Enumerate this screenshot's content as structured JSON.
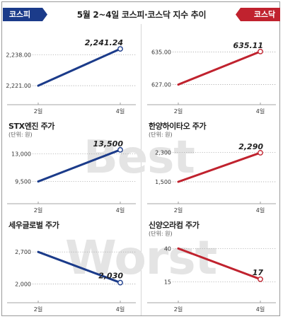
{
  "header": {
    "title": "5월 2~4일 코스피·코스닥 지수 추이",
    "left_tag": "코스피",
    "right_tag": "코스닥",
    "left_color": "#1b3b8a",
    "right_color": "#c0222e"
  },
  "watermark": {
    "top_word": "Best",
    "bottom_word": "Worst"
  },
  "chart_data": [
    {
      "type": "line",
      "title": "",
      "unit": "",
      "x": [
        "2일",
        "4일"
      ],
      "yticks": [
        "2,221.00",
        "2,238.00"
      ],
      "ylim": [
        2216,
        2244
      ],
      "values": [
        2221.0,
        2241.24
      ],
      "end_label": "2,241.24",
      "color": "#1b3b8a",
      "trend": "up"
    },
    {
      "type": "line",
      "title": "",
      "unit": "",
      "x": [
        "2일",
        "4일"
      ],
      "yticks": [
        "627.00",
        "635.00"
      ],
      "ylim": [
        624.5,
        637
      ],
      "values": [
        627.0,
        635.11
      ],
      "end_label": "635.11",
      "color": "#c0222e",
      "trend": "up"
    },
    {
      "type": "line",
      "title": "STX엔진 주가",
      "unit": "(단위: 원)",
      "x": [
        "2일",
        "4일"
      ],
      "yticks": [
        "9,500",
        "13,000"
      ],
      "ylim": [
        8300,
        14200
      ],
      "values": [
        9500,
        13500
      ],
      "end_label": "13,500",
      "color": "#1b3b8a",
      "trend": "up"
    },
    {
      "type": "line",
      "title": "한양하이타오 주가",
      "unit": "(단위: 원)",
      "x": [
        "2일",
        "4일"
      ],
      "yticks": [
        "1,500",
        "2,300"
      ],
      "ylim": [
        1250,
        2520
      ],
      "values": [
        1500,
        2290
      ],
      "end_label": "2,290",
      "color": "#c0222e",
      "trend": "up"
    },
    {
      "type": "line",
      "title": "세우글로벌 주가",
      "unit": "",
      "x": [
        "2일",
        "4일"
      ],
      "yticks": [
        "2,000",
        "2,700"
      ],
      "ylim": [
        1900,
        2950
      ],
      "values": [
        2700,
        2030
      ],
      "end_label": "2,030",
      "color": "#1b3b8a",
      "trend": "down"
    },
    {
      "type": "line",
      "title": "신양오라컴 주가",
      "unit": "(단위: 원)",
      "x": [
        "2일",
        "4일"
      ],
      "yticks": [
        "15",
        "40"
      ],
      "ylim": [
        10,
        46
      ],
      "values": [
        40,
        17
      ],
      "end_label": "17",
      "color": "#c0222e",
      "trend": "down"
    }
  ]
}
